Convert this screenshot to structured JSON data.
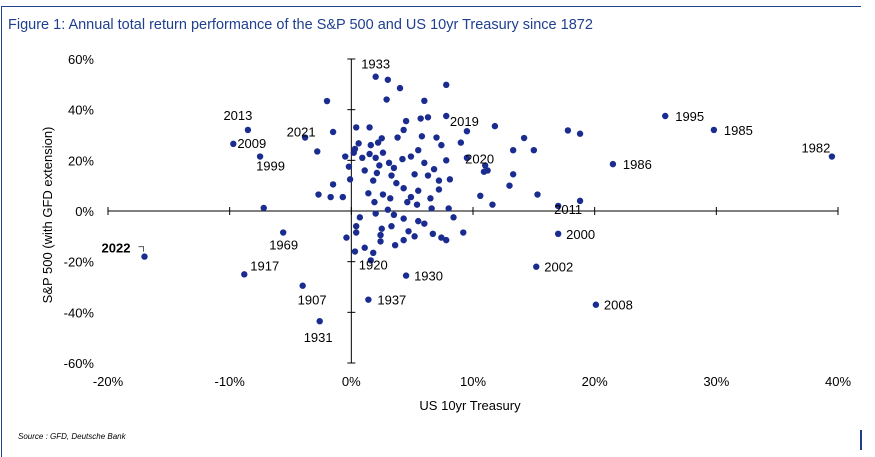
{
  "title": "Figure 1: Annual total return performance of the S&P 500 and US 10yr Treasury since 1872",
  "source": "Source : GFD, Deutsche Bank",
  "colors": {
    "frame": "#1f3f8f",
    "point": "#1a2c8f",
    "axis": "#000000"
  },
  "chart_data": {
    "type": "scatter",
    "xlabel": "US 10yr Treasury",
    "ylabel": "S&P 500 (with GFD extension)",
    "xlim": [
      -20,
      40
    ],
    "ylim": [
      -60,
      60
    ],
    "xticks": [
      -20,
      -10,
      0,
      10,
      20,
      30,
      40
    ],
    "yticks": [
      -60,
      -40,
      -20,
      0,
      20,
      40,
      60
    ],
    "xtick_labels": [
      "-20%",
      "-10%",
      "0%",
      "10%",
      "20%",
      "30%",
      "40%"
    ],
    "ytick_labels": [
      "-60%",
      "-40%",
      "-20%",
      "0%",
      "20%",
      "40%",
      "60%"
    ],
    "labeled_points": [
      {
        "year": "1933",
        "x": 2.0,
        "y": 53.0
      },
      {
        "year": "2013",
        "x": -8.5,
        "y": 32.0
      },
      {
        "year": "2021",
        "x": -3.8,
        "y": 29.0
      },
      {
        "year": "2009",
        "x": -9.7,
        "y": 26.5
      },
      {
        "year": "1999",
        "x": -7.5,
        "y": 21.5
      },
      {
        "year": "2019",
        "x": 9.5,
        "y": 31.5
      },
      {
        "year": "2020",
        "x": 11.0,
        "y": 18.0
      },
      {
        "year": "1995",
        "x": 25.8,
        "y": 37.5
      },
      {
        "year": "1985",
        "x": 29.8,
        "y": 32.0
      },
      {
        "year": "1982",
        "x": 39.5,
        "y": 21.5
      },
      {
        "year": "1986",
        "x": 21.5,
        "y": 18.5
      },
      {
        "year": "2011",
        "x": 17.0,
        "y": 2.0
      },
      {
        "year": "2000",
        "x": 17.0,
        "y": -9.0
      },
      {
        "year": "2002",
        "x": 15.2,
        "y": -22.0
      },
      {
        "year": "2008",
        "x": 20.1,
        "y": -37.0
      },
      {
        "year": "1969",
        "x": -5.6,
        "y": -8.5
      },
      {
        "year": "2022",
        "x": -17.0,
        "y": -18.0
      },
      {
        "year": "1917",
        "x": -8.8,
        "y": -25.0
      },
      {
        "year": "1920",
        "x": 1.6,
        "y": -19.5
      },
      {
        "year": "1930",
        "x": 4.5,
        "y": -25.5
      },
      {
        "year": "1907",
        "x": -4.0,
        "y": -29.5
      },
      {
        "year": "1937",
        "x": 1.4,
        "y": -35.0
      },
      {
        "year": "1931",
        "x": -2.6,
        "y": -43.5
      }
    ],
    "points": [
      {
        "x": -7.2,
        "y": 1.2
      },
      {
        "x": 0.6,
        "y": 26.7
      },
      {
        "x": 3.0,
        "y": 51.8
      },
      {
        "x": 4.0,
        "y": 48.5
      },
      {
        "x": 7.8,
        "y": 49.8
      },
      {
        "x": 6.0,
        "y": 43.5
      },
      {
        "x": 2.9,
        "y": 44.0
      },
      {
        "x": -2.0,
        "y": 43.4
      },
      {
        "x": 0.4,
        "y": 33.0
      },
      {
        "x": 1.5,
        "y": 33.0
      },
      {
        "x": 4.5,
        "y": 35.5
      },
      {
        "x": 5.7,
        "y": 36.5
      },
      {
        "x": 6.3,
        "y": 37.0
      },
      {
        "x": 7.8,
        "y": 37.5
      },
      {
        "x": 4.3,
        "y": 32.0
      },
      {
        "x": 5.8,
        "y": 29.5
      },
      {
        "x": -1.5,
        "y": 31.2
      },
      {
        "x": 2.5,
        "y": 28.7
      },
      {
        "x": 3.8,
        "y": 29.0
      },
      {
        "x": 9.0,
        "y": 27.0
      },
      {
        "x": 7.0,
        "y": 29.0
      },
      {
        "x": 11.8,
        "y": 33.5
      },
      {
        "x": 15.0,
        "y": 24.0
      },
      {
        "x": 14.2,
        "y": 28.8
      },
      {
        "x": 13.3,
        "y": 24.0
      },
      {
        "x": 18.8,
        "y": 30.5
      },
      {
        "x": 17.8,
        "y": 31.8
      },
      {
        "x": 0.3,
        "y": 24.5
      },
      {
        "x": 1.6,
        "y": 26.0
      },
      {
        "x": 2.2,
        "y": 27.0
      },
      {
        "x": -0.5,
        "y": 21.5
      },
      {
        "x": 0.2,
        "y": 23.0
      },
      {
        "x": -2.8,
        "y": 23.5
      },
      {
        "x": -0.2,
        "y": 17.5
      },
      {
        "x": 0.9,
        "y": 21.0
      },
      {
        "x": 1.5,
        "y": 22.5
      },
      {
        "x": 2.0,
        "y": 21.0
      },
      {
        "x": 2.6,
        "y": 23.0
      },
      {
        "x": 3.1,
        "y": 19.0
      },
      {
        "x": 4.2,
        "y": 20.5
      },
      {
        "x": 4.9,
        "y": 21.5
      },
      {
        "x": 5.5,
        "y": 24.0
      },
      {
        "x": 7.4,
        "y": 26.0
      },
      {
        "x": 7.8,
        "y": 20.0
      },
      {
        "x": 6.0,
        "y": 19.0
      },
      {
        "x": 6.8,
        "y": 16.5
      },
      {
        "x": 2.3,
        "y": 18.0
      },
      {
        "x": 3.5,
        "y": 17.0
      },
      {
        "x": 1.1,
        "y": 16.0
      },
      {
        "x": 2.1,
        "y": 15.0
      },
      {
        "x": 3.3,
        "y": 14.0
      },
      {
        "x": 5.2,
        "y": 14.5
      },
      {
        "x": 6.3,
        "y": 14.0
      },
      {
        "x": 7.2,
        "y": 12.0
      },
      {
        "x": 8.1,
        "y": 12.5
      },
      {
        "x": 10.9,
        "y": 15.5
      },
      {
        "x": 11.2,
        "y": 16.0
      },
      {
        "x": 13.3,
        "y": 14.5
      },
      {
        "x": 13.0,
        "y": 10.0
      },
      {
        "x": 9.5,
        "y": 21.0
      },
      {
        "x": -1.5,
        "y": 10.5
      },
      {
        "x": -0.1,
        "y": 12.5
      },
      {
        "x": 1.8,
        "y": 12.0
      },
      {
        "x": 3.7,
        "y": 11.0
      },
      {
        "x": 4.3,
        "y": 9.0
      },
      {
        "x": 5.5,
        "y": 8.0
      },
      {
        "x": 7.2,
        "y": 8.5
      },
      {
        "x": -2.7,
        "y": 6.5
      },
      {
        "x": -1.7,
        "y": 5.5
      },
      {
        "x": -0.7,
        "y": 5.5
      },
      {
        "x": 1.4,
        "y": 7.0
      },
      {
        "x": 2.6,
        "y": 6.5
      },
      {
        "x": 3.2,
        "y": 5.0
      },
      {
        "x": 4.9,
        "y": 5.5
      },
      {
        "x": 6.5,
        "y": 5.0
      },
      {
        "x": 10.6,
        "y": 6.0
      },
      {
        "x": 11.6,
        "y": 2.5
      },
      {
        "x": 15.3,
        "y": 6.5
      },
      {
        "x": 18.8,
        "y": 4.0
      },
      {
        "x": 1.9,
        "y": 3.5
      },
      {
        "x": 4.6,
        "y": 3.5
      },
      {
        "x": 5.4,
        "y": 2.5
      },
      {
        "x": 6.6,
        "y": 1.0
      },
      {
        "x": 8.0,
        "y": 1.0
      },
      {
        "x": 8.4,
        "y": -2.5
      },
      {
        "x": 0.7,
        "y": -2.5
      },
      {
        "x": 0.4,
        "y": -6.0
      },
      {
        "x": 2.0,
        "y": -1.0
      },
      {
        "x": 3.0,
        "y": 0.5
      },
      {
        "x": 3.5,
        "y": -1.5
      },
      {
        "x": 4.3,
        "y": -3.0
      },
      {
        "x": 5.5,
        "y": -4.0
      },
      {
        "x": 6.0,
        "y": -5.0
      },
      {
        "x": 3.3,
        "y": -6.0
      },
      {
        "x": 2.5,
        "y": -7.0
      },
      {
        "x": 0.4,
        "y": -8.5
      },
      {
        "x": -0.4,
        "y": -10.5
      },
      {
        "x": 2.4,
        "y": -9.5
      },
      {
        "x": 4.7,
        "y": -8.0
      },
      {
        "x": 5.2,
        "y": -10.0
      },
      {
        "x": 6.7,
        "y": -9.0
      },
      {
        "x": 7.4,
        "y": -10.5
      },
      {
        "x": 7.8,
        "y": -11.5
      },
      {
        "x": 4.3,
        "y": -11.5
      },
      {
        "x": 3.6,
        "y": -13.5
      },
      {
        "x": 2.4,
        "y": -12.0
      },
      {
        "x": 1.1,
        "y": -14.5
      },
      {
        "x": 1.8,
        "y": -16.5
      },
      {
        "x": 0.3,
        "y": -16.0
      },
      {
        "x": 9.2,
        "y": -8.5
      }
    ]
  }
}
